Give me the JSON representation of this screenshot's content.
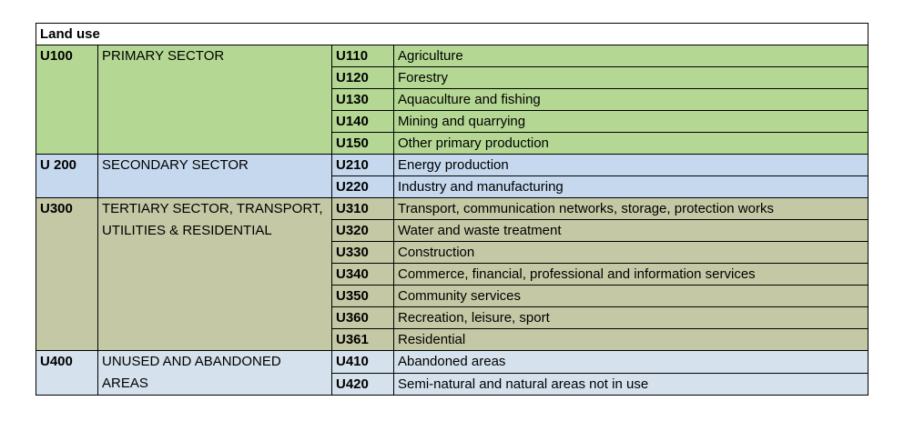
{
  "table": {
    "title": "Land use",
    "sectors": [
      {
        "code": "U100",
        "name": "PRIMARY SECTOR",
        "color": "#b4d893",
        "items": [
          {
            "code": "U110",
            "name": "Agriculture"
          },
          {
            "code": "U120",
            "name": "Forestry"
          },
          {
            "code": "U130",
            "name": "Aquaculture and fishing"
          },
          {
            "code": "U140",
            "name": "Mining and quarrying"
          },
          {
            "code": "U150",
            "name": "Other primary production"
          }
        ]
      },
      {
        "code": "U 200",
        "name": "SECONDARY SECTOR",
        "color": "#c5d8ee",
        "items": [
          {
            "code": "U210",
            "name": "Energy production"
          },
          {
            "code": "U220",
            "name": "Industry and manufacturing"
          }
        ]
      },
      {
        "code": "U300",
        "name": "TERTIARY SECTOR, TRANSPORT, UTILITIES & RESIDENTIAL",
        "color": "#c5c8a4",
        "items": [
          {
            "code": "U310",
            "name": "Transport, communication networks, storage, protection works"
          },
          {
            "code": "U320",
            "name": "Water and waste treatment"
          },
          {
            "code": "U330",
            "name": "Construction"
          },
          {
            "code": "U340",
            "name": "Commerce, financial, professional and information services"
          },
          {
            "code": "U350",
            "name": "Community services"
          },
          {
            "code": "U360",
            "name": "Recreation, leisure, sport"
          },
          {
            "code": "U361",
            "name": "Residential"
          }
        ]
      },
      {
        "code": "U400",
        "name": "UNUSED AND ABANDONED AREAS",
        "color": "#d5e1ec",
        "items": [
          {
            "code": "U410",
            "name": "Abandoned areas"
          },
          {
            "code": "U420",
            "name": "Semi-natural and natural areas not in use"
          }
        ]
      }
    ]
  }
}
